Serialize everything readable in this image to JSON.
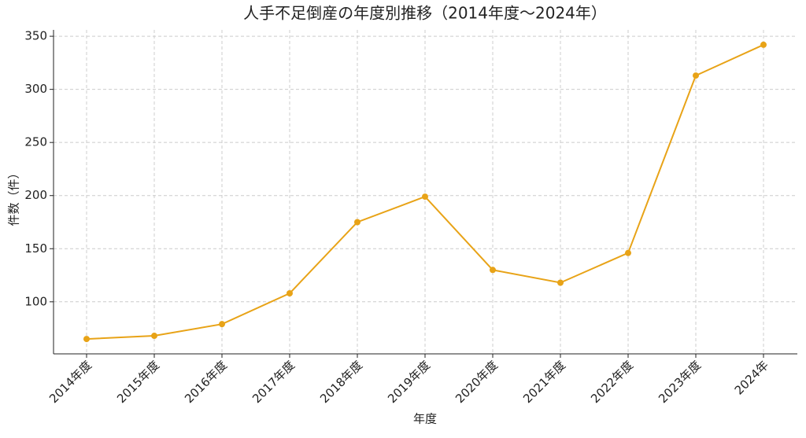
{
  "chart_data": {
    "type": "line",
    "title": "人手不足倒産の年度別推移（2014年度〜2024年）",
    "x_label": "年度",
    "y_label": "件数（件）",
    "categories": [
      "2014年度",
      "2015年度",
      "2016年度",
      "2017年度",
      "2018年度",
      "2019年度",
      "2020年度",
      "2021年度",
      "2022年度",
      "2023年度",
      "2024年"
    ],
    "series": [
      {
        "name": "人手不足倒産",
        "color": "#e8a317",
        "values": [
          65,
          68,
          79,
          108,
          175,
          199,
          130,
          118,
          146,
          313,
          342
        ]
      }
    ],
    "ylim": [
      51,
      356
    ],
    "yticks": [
      100,
      150,
      200,
      250,
      300,
      350
    ],
    "grid": true
  }
}
